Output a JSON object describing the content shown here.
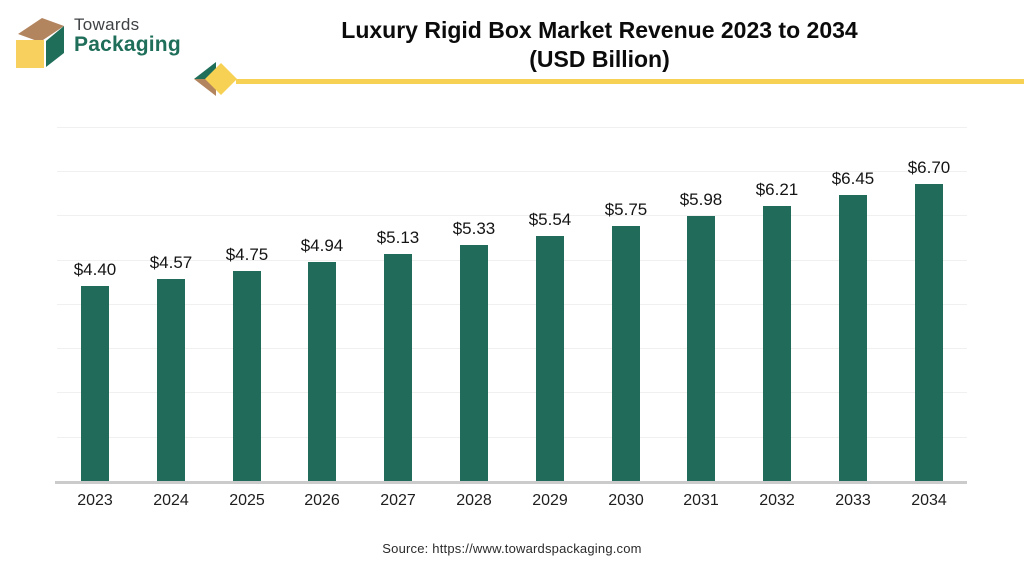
{
  "logo": {
    "icon": "box-3d-icon",
    "line1": "Towards",
    "line2": "Packaging"
  },
  "header": {
    "title_line1": "Luxury Rigid Box Market Revenue 2023 to 2034",
    "title_line2": "(USD Billion)"
  },
  "footer": {
    "source": "Source: https://www.towardspackaging.com"
  },
  "colors": {
    "bar": "#206b5a",
    "logo_teal": "#1f6e5a",
    "accent_yellow": "#f7d154",
    "accent_brown": "#b3855f",
    "gridline": "#f0f0ee",
    "axis_line": "#cbcbcb",
    "title_text": "#0b0b0b",
    "label_text": "#141414"
  },
  "chart_data": {
    "type": "bar",
    "title": "Luxury Rigid Box Market Revenue 2023 to 2034 (USD Billion)",
    "xlabel": "",
    "ylabel": "",
    "categories": [
      "2023",
      "2024",
      "2025",
      "2026",
      "2027",
      "2028",
      "2029",
      "2030",
      "2031",
      "2032",
      "2033",
      "2034"
    ],
    "values": [
      4.4,
      4.57,
      4.75,
      4.94,
      5.13,
      5.33,
      5.54,
      5.75,
      5.98,
      6.21,
      6.45,
      6.7
    ],
    "value_labels": [
      "$4.40",
      "$4.57",
      "$4.75",
      "$4.94",
      "$5.13",
      "$5.33",
      "$5.54",
      "$5.75",
      "$5.98",
      "$6.21",
      "$6.45",
      "$6.70"
    ],
    "unit": "USD Billion",
    "ylim": [
      0,
      8
    ],
    "gridlines_at": [
      1,
      2,
      3,
      4,
      5,
      6,
      7,
      8
    ],
    "grid": "horizontal-faint",
    "legend": "none",
    "bar_color": "#206b5a"
  }
}
